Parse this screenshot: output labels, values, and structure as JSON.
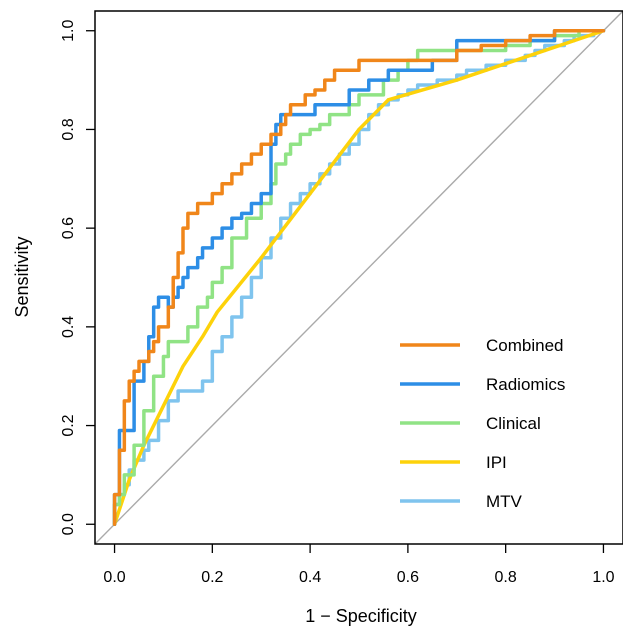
{
  "chart_data": {
    "type": "line",
    "title": "",
    "xlabel": "1 − Specificity",
    "ylabel": "Sensitivity",
    "xlim": [
      -0.04,
      1.04
    ],
    "ylim": [
      -0.04,
      1.04
    ],
    "x_ticks": [
      "0.0",
      "0.2",
      "0.4",
      "0.6",
      "0.8",
      "1.0"
    ],
    "y_ticks": [
      "0.0",
      "0.2",
      "0.4",
      "0.6",
      "0.8",
      "1.0"
    ],
    "grid": false,
    "legend_position": "bottom-right",
    "reference_line": {
      "x": [
        0,
        1
      ],
      "y": [
        0,
        1
      ],
      "color": "#aaaaaa"
    },
    "series": [
      {
        "name": "MTV",
        "color": "#7fc4ee",
        "x": [
          0.0,
          0.01,
          0.02,
          0.03,
          0.04,
          0.06,
          0.07,
          0.09,
          0.11,
          0.13,
          0.15,
          0.18,
          0.2,
          0.22,
          0.24,
          0.26,
          0.28,
          0.3,
          0.32,
          0.34,
          0.36,
          0.38,
          0.4,
          0.42,
          0.44,
          0.46,
          0.48,
          0.5,
          0.52,
          0.54,
          0.56,
          0.58,
          0.6,
          0.62,
          0.64,
          0.66,
          0.68,
          0.7,
          0.72,
          0.74,
          0.76,
          0.78,
          0.8,
          0.82,
          0.84,
          0.86,
          0.88,
          0.9,
          0.92,
          0.94,
          0.96,
          0.98,
          1.0
        ],
        "y": [
          0.0,
          0.04,
          0.06,
          0.08,
          0.11,
          0.13,
          0.15,
          0.17,
          0.21,
          0.25,
          0.27,
          0.27,
          0.29,
          0.35,
          0.38,
          0.42,
          0.46,
          0.5,
          0.54,
          0.58,
          0.62,
          0.65,
          0.67,
          0.69,
          0.71,
          0.73,
          0.75,
          0.77,
          0.8,
          0.83,
          0.85,
          0.86,
          0.87,
          0.88,
          0.89,
          0.89,
          0.9,
          0.9,
          0.91,
          0.92,
          0.92,
          0.93,
          0.93,
          0.94,
          0.94,
          0.95,
          0.96,
          0.97,
          0.97,
          0.98,
          0.99,
          0.99,
          1.0
        ]
      },
      {
        "name": "IPI",
        "color": "#fdd20a",
        "x": [
          0.0,
          0.03,
          0.06,
          0.1,
          0.14,
          0.18,
          0.21,
          0.3,
          0.4,
          0.5,
          0.56,
          0.7,
          0.85,
          1.0
        ],
        "y": [
          0.0,
          0.09,
          0.16,
          0.24,
          0.32,
          0.38,
          0.43,
          0.54,
          0.67,
          0.8,
          0.86,
          0.9,
          0.95,
          1.0
        ]
      },
      {
        "name": "Clinical",
        "color": "#90e385",
        "x": [
          0.0,
          0.01,
          0.02,
          0.04,
          0.06,
          0.08,
          0.1,
          0.11,
          0.13,
          0.15,
          0.17,
          0.19,
          0.2,
          0.22,
          0.24,
          0.27,
          0.3,
          0.32,
          0.33,
          0.35,
          0.36,
          0.38,
          0.4,
          0.42,
          0.44,
          0.46,
          0.48,
          0.5,
          0.52,
          0.55,
          0.58,
          0.6,
          0.62,
          0.65,
          0.75,
          0.8,
          0.85,
          0.9,
          0.95,
          1.0
        ],
        "y": [
          0.0,
          0.04,
          0.06,
          0.1,
          0.16,
          0.23,
          0.3,
          0.34,
          0.37,
          0.37,
          0.4,
          0.44,
          0.46,
          0.49,
          0.52,
          0.58,
          0.62,
          0.65,
          0.69,
          0.73,
          0.75,
          0.77,
          0.79,
          0.8,
          0.81,
          0.83,
          0.83,
          0.85,
          0.87,
          0.87,
          0.9,
          0.92,
          0.94,
          0.96,
          0.96,
          0.96,
          0.97,
          0.98,
          0.99,
          1.0
        ]
      },
      {
        "name": "Radiomics",
        "color": "#2d8ee6",
        "x": [
          0.0,
          0.01,
          0.02,
          0.04,
          0.06,
          0.07,
          0.08,
          0.09,
          0.1,
          0.11,
          0.12,
          0.13,
          0.14,
          0.15,
          0.16,
          0.17,
          0.18,
          0.19,
          0.2,
          0.22,
          0.24,
          0.26,
          0.28,
          0.3,
          0.32,
          0.33,
          0.34,
          0.35,
          0.37,
          0.39,
          0.41,
          0.45,
          0.48,
          0.52,
          0.56,
          0.6,
          0.65,
          0.7,
          0.75,
          0.8,
          0.85,
          0.9,
          1.0
        ],
        "y": [
          0.0,
          0.06,
          0.19,
          0.19,
          0.29,
          0.33,
          0.38,
          0.44,
          0.46,
          0.46,
          0.44,
          0.46,
          0.48,
          0.5,
          0.52,
          0.52,
          0.54,
          0.56,
          0.56,
          0.58,
          0.6,
          0.62,
          0.63,
          0.65,
          0.67,
          0.77,
          0.81,
          0.83,
          0.83,
          0.83,
          0.83,
          0.85,
          0.85,
          0.88,
          0.9,
          0.92,
          0.92,
          0.94,
          0.98,
          0.98,
          0.98,
          0.98,
          1.0
        ]
      },
      {
        "name": "Combined",
        "color": "#f0861a",
        "x": [
          0.0,
          0.01,
          0.02,
          0.03,
          0.04,
          0.05,
          0.07,
          0.08,
          0.09,
          0.11,
          0.12,
          0.13,
          0.14,
          0.15,
          0.16,
          0.17,
          0.18,
          0.2,
          0.22,
          0.24,
          0.26,
          0.28,
          0.3,
          0.32,
          0.34,
          0.35,
          0.36,
          0.37,
          0.39,
          0.41,
          0.43,
          0.45,
          0.47,
          0.5,
          0.55,
          0.6,
          0.65,
          0.7,
          0.75,
          0.8,
          0.85,
          0.9,
          1.0
        ],
        "y": [
          0.0,
          0.06,
          0.15,
          0.25,
          0.29,
          0.31,
          0.33,
          0.35,
          0.37,
          0.4,
          0.44,
          0.5,
          0.55,
          0.6,
          0.63,
          0.63,
          0.65,
          0.65,
          0.67,
          0.69,
          0.71,
          0.73,
          0.75,
          0.77,
          0.79,
          0.81,
          0.83,
          0.85,
          0.85,
          0.87,
          0.88,
          0.9,
          0.92,
          0.92,
          0.94,
          0.94,
          0.94,
          0.94,
          0.96,
          0.97,
          0.98,
          0.99,
          1.0
        ]
      }
    ],
    "legend": [
      {
        "name": "Combined",
        "color": "#f0861a"
      },
      {
        "name": "Radiomics",
        "color": "#2d8ee6"
      },
      {
        "name": "Clinical",
        "color": "#90e385"
      },
      {
        "name": "IPI",
        "color": "#fdd20a"
      },
      {
        "name": "MTV",
        "color": "#7fc4ee"
      }
    ]
  }
}
